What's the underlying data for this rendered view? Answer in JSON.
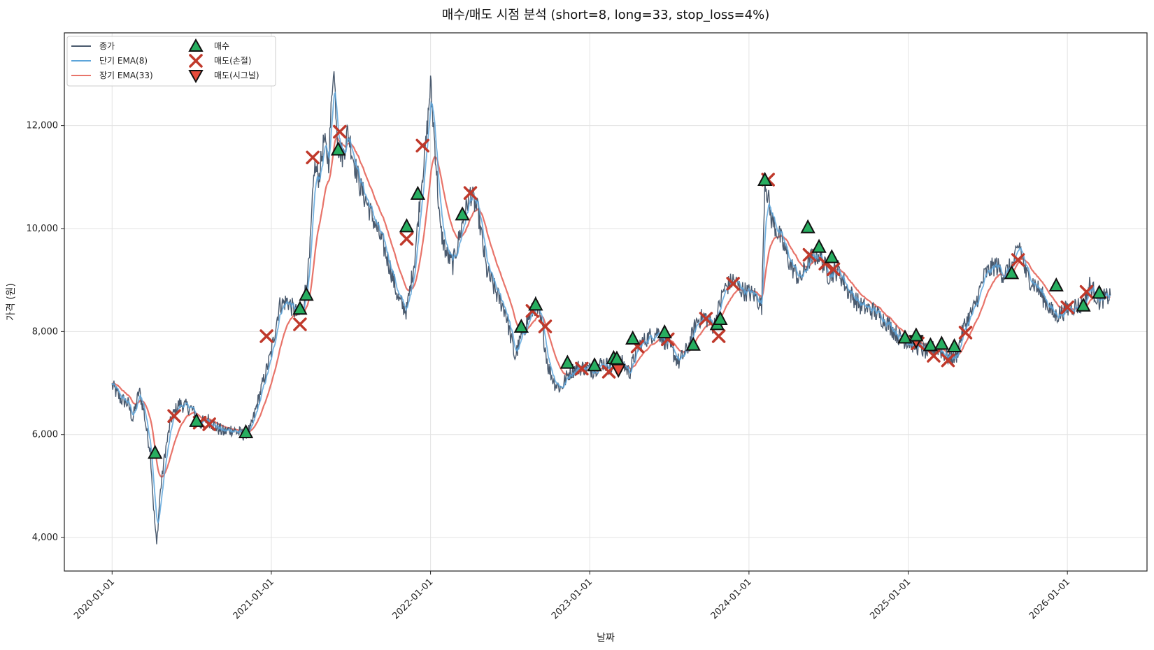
{
  "chart_data": {
    "type": "line",
    "title": "매수/매도 시점 분석 (short=8, long=33, stop_loss=4%)",
    "xlabel": "날짜",
    "ylabel": "가격 (원)",
    "x_ticks": [
      "2020-01-01",
      "2021-01-01",
      "2022-01-01",
      "2023-01-01",
      "2024-01-01",
      "2025-01-01",
      "2026-01-01"
    ],
    "y_ticks": [
      "4,000",
      "6,000",
      "8,000",
      "10,000",
      "12,000"
    ],
    "xlim": [
      2019.7,
      2026.5
    ],
    "ylim": [
      3350,
      13800
    ],
    "grid": true,
    "legend_position": "top-left",
    "colors": {
      "close": "#4a5a6e",
      "ema_short": "#5da5da",
      "ema_long": "#e8746a",
      "buy": "#27ae60",
      "sell": "#c0392b",
      "sell_signal": "#e74c3c"
    },
    "legend": [
      "종가",
      "단기 EMA(8)",
      "장기 EMA(33)",
      "매수",
      "매도(손절)",
      "매도(시그널)"
    ],
    "price_anchors": [
      [
        2020.0,
        6950
      ],
      [
        2020.05,
        6700
      ],
      [
        2020.1,
        6600
      ],
      [
        2020.13,
        6300
      ],
      [
        2020.17,
        6850
      ],
      [
        2020.2,
        6450
      ],
      [
        2020.22,
        6000
      ],
      [
        2020.24,
        5700
      ],
      [
        2020.26,
        4600
      ],
      [
        2020.28,
        3850
      ],
      [
        2020.3,
        4800
      ],
      [
        2020.33,
        5600
      ],
      [
        2020.37,
        6300
      ],
      [
        2020.42,
        6600
      ],
      [
        2020.5,
        6500
      ],
      [
        2020.55,
        6200
      ],
      [
        2020.6,
        6300
      ],
      [
        2020.65,
        6150
      ],
      [
        2020.7,
        6050
      ],
      [
        2020.75,
        6100
      ],
      [
        2020.82,
        6000
      ],
      [
        2020.87,
        6100
      ],
      [
        2020.92,
        6700
      ],
      [
        2021.0,
        7600
      ],
      [
        2021.05,
        8500
      ],
      [
        2021.1,
        8600
      ],
      [
        2021.17,
        8300
      ],
      [
        2021.2,
        8500
      ],
      [
        2021.24,
        9400
      ],
      [
        2021.27,
        11200
      ],
      [
        2021.3,
        11000
      ],
      [
        2021.33,
        11700
      ],
      [
        2021.36,
        11300
      ],
      [
        2021.39,
        13200
      ],
      [
        2021.42,
        11600
      ],
      [
        2021.45,
        11400
      ],
      [
        2021.48,
        11900
      ],
      [
        2021.52,
        11300
      ],
      [
        2021.56,
        10800
      ],
      [
        2021.6,
        10500
      ],
      [
        2021.65,
        10100
      ],
      [
        2021.7,
        9700
      ],
      [
        2021.75,
        9200
      ],
      [
        2021.8,
        8600
      ],
      [
        2021.85,
        8400
      ],
      [
        2021.9,
        9400
      ],
      [
        2021.94,
        10800
      ],
      [
        2021.97,
        11600
      ],
      [
        2022.0,
        12800
      ],
      [
        2022.03,
        11500
      ],
      [
        2022.06,
        10000
      ],
      [
        2022.1,
        9500
      ],
      [
        2022.14,
        9300
      ],
      [
        2022.2,
        10100
      ],
      [
        2022.25,
        10700
      ],
      [
        2022.3,
        10300
      ],
      [
        2022.35,
        9200
      ],
      [
        2022.42,
        8700
      ],
      [
        2022.47,
        8400
      ],
      [
        2022.53,
        7500
      ],
      [
        2022.57,
        7900
      ],
      [
        2022.62,
        8300
      ],
      [
        2022.66,
        8500
      ],
      [
        2022.7,
        8100
      ],
      [
        2022.74,
        7300
      ],
      [
        2022.78,
        7000
      ],
      [
        2022.82,
        6900
      ],
      [
        2022.87,
        7200
      ],
      [
        2022.92,
        7300
      ],
      [
        2022.97,
        7300
      ],
      [
        2023.02,
        7250
      ],
      [
        2023.08,
        7400
      ],
      [
        2023.14,
        7300
      ],
      [
        2023.2,
        7400
      ],
      [
        2023.25,
        7200
      ],
      [
        2023.3,
        7700
      ],
      [
        2023.37,
        7900
      ],
      [
        2023.43,
        8000
      ],
      [
        2023.5,
        7700
      ],
      [
        2023.56,
        7400
      ],
      [
        2023.62,
        7700
      ],
      [
        2023.67,
        8200
      ],
      [
        2023.72,
        8300
      ],
      [
        2023.78,
        8100
      ],
      [
        2023.84,
        8800
      ],
      [
        2023.9,
        9000
      ],
      [
        2023.96,
        8800
      ],
      [
        2024.04,
        8700
      ],
      [
        2024.08,
        8500
      ],
      [
        2024.1,
        11000
      ],
      [
        2024.14,
        10200
      ],
      [
        2024.2,
        9800
      ],
      [
        2024.26,
        9300
      ],
      [
        2024.32,
        9000
      ],
      [
        2024.38,
        9400
      ],
      [
        2024.44,
        9500
      ],
      [
        2024.5,
        9100
      ],
      [
        2024.56,
        9200
      ],
      [
        2024.62,
        8800
      ],
      [
        2024.7,
        8500
      ],
      [
        2024.78,
        8400
      ],
      [
        2024.86,
        8200
      ],
      [
        2024.94,
        7900
      ],
      [
        2025.0,
        7800
      ],
      [
        2025.06,
        7700
      ],
      [
        2025.12,
        7600
      ],
      [
        2025.18,
        7700
      ],
      [
        2025.25,
        7500
      ],
      [
        2025.3,
        7500
      ],
      [
        2025.35,
        8100
      ],
      [
        2025.42,
        8500
      ],
      [
        2025.48,
        9100
      ],
      [
        2025.55,
        9300
      ],
      [
        2025.6,
        9100
      ],
      [
        2025.66,
        9300
      ],
      [
        2025.7,
        9700
      ],
      [
        2025.74,
        9100
      ],
      [
        2025.8,
        8900
      ],
      [
        2025.86,
        8600
      ],
      [
        2025.92,
        8300
      ],
      [
        2025.98,
        8400
      ],
      [
        2026.04,
        8500
      ],
      [
        2026.1,
        8500
      ],
      [
        2026.14,
        8900
      ],
      [
        2026.2,
        8600
      ],
      [
        2026.27,
        8700
      ]
    ],
    "buy_points": [
      [
        2020.27,
        5650
      ],
      [
        2020.53,
        6270
      ],
      [
        2020.84,
        6050
      ],
      [
        2021.18,
        8450
      ],
      [
        2021.22,
        8720
      ],
      [
        2021.42,
        11540
      ],
      [
        2021.85,
        10050
      ],
      [
        2021.92,
        10680
      ],
      [
        2022.2,
        10280
      ],
      [
        2022.57,
        8100
      ],
      [
        2022.66,
        8530
      ],
      [
        2022.86,
        7400
      ],
      [
        2023.03,
        7350
      ],
      [
        2023.15,
        7490
      ],
      [
        2023.17,
        7480
      ],
      [
        2023.27,
        7870
      ],
      [
        2023.47,
        7990
      ],
      [
        2023.65,
        7750
      ],
      [
        2023.8,
        8150
      ],
      [
        2023.82,
        8250
      ],
      [
        2024.1,
        10950
      ],
      [
        2024.37,
        10030
      ],
      [
        2024.44,
        9650
      ],
      [
        2024.52,
        9450
      ],
      [
        2024.98,
        7890
      ],
      [
        2025.05,
        7930
      ],
      [
        2025.14,
        7740
      ],
      [
        2025.21,
        7770
      ],
      [
        2025.29,
        7720
      ],
      [
        2025.65,
        9140
      ],
      [
        2025.93,
        8900
      ],
      [
        2026.1,
        8510
      ],
      [
        2026.2,
        8760
      ]
    ],
    "stop_loss_points": [
      [
        2020.39,
        6360
      ],
      [
        2020.55,
        6230
      ],
      [
        2020.61,
        6200
      ],
      [
        2020.97,
        7910
      ],
      [
        2021.18,
        8140
      ],
      [
        2021.26,
        11380
      ],
      [
        2021.43,
        11880
      ],
      [
        2021.85,
        9800
      ],
      [
        2021.95,
        11610
      ],
      [
        2022.25,
        10690
      ],
      [
        2022.64,
        8400
      ],
      [
        2022.72,
        8100
      ],
      [
        2022.95,
        7280
      ],
      [
        2023.12,
        7220
      ],
      [
        2023.3,
        7710
      ],
      [
        2023.49,
        7850
      ],
      [
        2023.73,
        8250
      ],
      [
        2023.81,
        7910
      ],
      [
        2023.9,
        8930
      ],
      [
        2024.12,
        10950
      ],
      [
        2024.38,
        9490
      ],
      [
        2024.48,
        9320
      ],
      [
        2024.53,
        9210
      ],
      [
        2025.06,
        7770
      ],
      [
        2025.16,
        7530
      ],
      [
        2025.25,
        7440
      ],
      [
        2025.36,
        7980
      ],
      [
        2025.69,
        9390
      ],
      [
        2026.0,
        8470
      ],
      [
        2026.12,
        8770
      ]
    ],
    "signal_sell_points": [
      [
        2023.18,
        7250
      ],
      [
        2025.05,
        7810
      ]
    ]
  }
}
